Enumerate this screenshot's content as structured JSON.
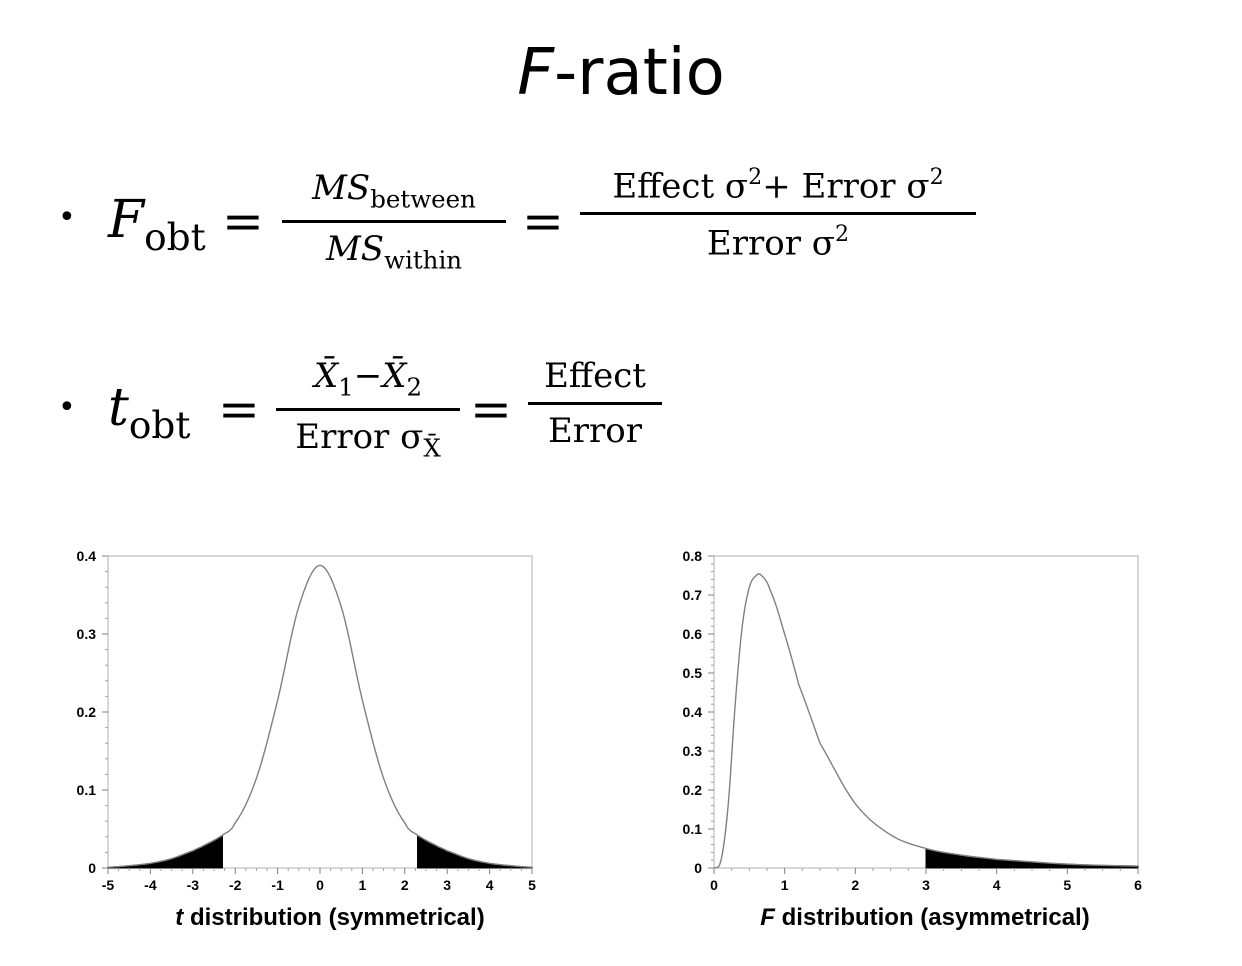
{
  "title": {
    "italic": "F",
    "rest": "-ratio"
  },
  "bullet_char": "•",
  "formula_f": {
    "lhs_var": "F",
    "lhs_sub": "obt",
    "eq1": "=",
    "frac1_num_var": "MS",
    "frac1_num_sub": "between",
    "frac1_den_var": "MS",
    "frac1_den_sub": "within",
    "eq2": "=",
    "frac2_num_a": "Effect σ",
    "frac2_num_a_sup": "2",
    "frac2_num_plus": "+ Error σ",
    "frac2_num_b_sup": "2",
    "frac2_den": "Error σ",
    "frac2_den_sup": "2"
  },
  "formula_t": {
    "lhs_var": "t",
    "lhs_sub": "obt",
    "eq1": "=",
    "frac1_num_x1": "X̄",
    "frac1_num_sub1": "1",
    "frac1_num_minus": "−",
    "frac1_num_x2": "X̄",
    "frac1_num_sub2": "2",
    "frac1_den": "Error σ",
    "frac1_den_sub": "X̄",
    "eq2": "=",
    "frac2_num": "Effect",
    "frac2_den": "Error"
  },
  "chart_data": [
    {
      "type": "area",
      "title": "",
      "xlabel_italic": "t",
      "xlabel_rest": " distribution (symmetrical)",
      "xlim": [
        -5,
        5
      ],
      "ylim": [
        0,
        0.4
      ],
      "xticks": [
        -5,
        -4,
        -3,
        -2,
        -1,
        0,
        1,
        2,
        3,
        4,
        5
      ],
      "yticks": [
        0,
        0.1,
        0.2,
        0.3,
        0.4
      ],
      "ytick_labels": [
        "0",
        "0.1",
        "0.2",
        "0.3",
        "0.4"
      ],
      "x": [
        -5,
        -4.5,
        -4,
        -3.5,
        -3,
        -2.7,
        -2.3,
        -2,
        -1.5,
        -1,
        -0.5,
        0,
        0.5,
        1,
        1.5,
        2,
        2.3,
        2.7,
        3,
        3.5,
        4,
        4.5,
        5
      ],
      "y": [
        0.001,
        0.003,
        0.006,
        0.012,
        0.022,
        0.03,
        0.042,
        0.058,
        0.115,
        0.215,
        0.335,
        0.388,
        0.335,
        0.215,
        0.115,
        0.058,
        0.042,
        0.03,
        0.022,
        0.012,
        0.006,
        0.003,
        0.001
      ],
      "shaded_regions": [
        [
          -5,
          -2.3
        ],
        [
          2.3,
          5
        ]
      ],
      "line_color": "#808080",
      "fill_color": "#000000"
    },
    {
      "type": "area",
      "title": "",
      "xlabel_italic": "F",
      "xlabel_rest": " distribution (asymmetrical)",
      "xlim": [
        0,
        6
      ],
      "ylim": [
        0,
        0.8
      ],
      "xticks": [
        0,
        1,
        2,
        3,
        4,
        5,
        6
      ],
      "yticks": [
        0,
        0.1,
        0.2,
        0.3,
        0.4,
        0.5,
        0.6,
        0.7,
        0.8
      ],
      "ytick_labels": [
        "0",
        "0.1",
        "0.2",
        "0.3",
        "0.4",
        "0.5",
        "0.6",
        "0.7",
        "0.8"
      ],
      "x": [
        0,
        0.1,
        0.2,
        0.3,
        0.4,
        0.5,
        0.6,
        0.67,
        0.8,
        1.0,
        1.2,
        1.5,
        2.0,
        2.5,
        3.0,
        3.5,
        4.0,
        5.0,
        6.0
      ],
      "y": [
        0,
        0.02,
        0.16,
        0.42,
        0.62,
        0.72,
        0.75,
        0.75,
        0.71,
        0.6,
        0.47,
        0.32,
        0.165,
        0.085,
        0.05,
        0.033,
        0.022,
        0.01,
        0.005
      ],
      "shaded_regions": [
        [
          3.0,
          6.0
        ]
      ],
      "line_color": "#808080",
      "fill_color": "#000000"
    }
  ]
}
